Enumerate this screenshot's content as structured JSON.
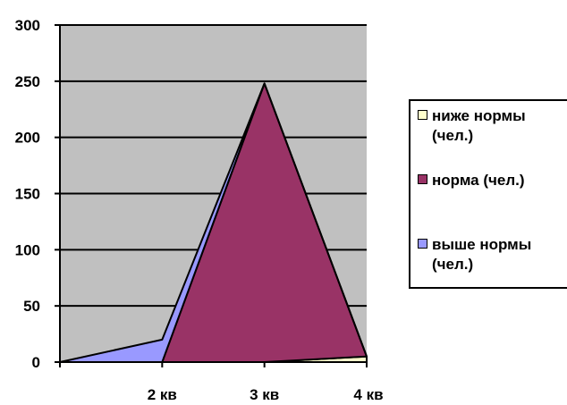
{
  "chart_data": {
    "type": "area",
    "stacked": true,
    "categories": [
      "",
      "2 кв",
      "3 кв",
      "4 кв"
    ],
    "series": [
      {
        "name": "ниже нормы (чел.)",
        "color": "#ffffcc",
        "values": [
          0,
          0,
          0,
          5
        ]
      },
      {
        "name": "норма (чел.)",
        "color": "#993366",
        "values": [
          0,
          0,
          248,
          0
        ]
      },
      {
        "name": "выше нормы (чел.)",
        "color": "#9999ff",
        "values": [
          0,
          20,
          0,
          0
        ]
      }
    ],
    "ylim": [
      0,
      300
    ],
    "yticks": [
      0,
      50,
      100,
      150,
      200,
      250,
      300
    ],
    "plot_background": "#c0c0c0",
    "grid": true,
    "legend_position": "right"
  }
}
